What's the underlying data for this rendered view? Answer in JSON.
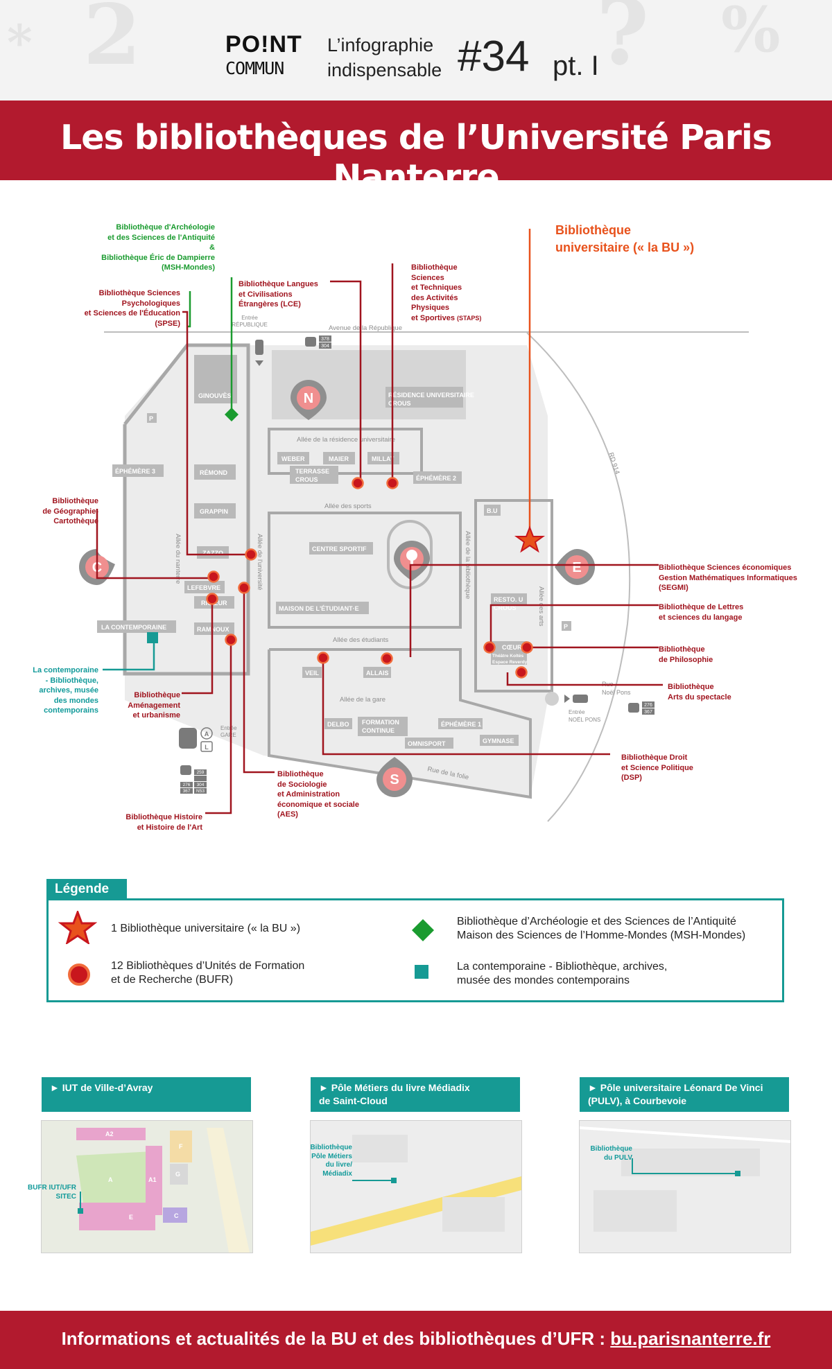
{
  "header": {
    "brand_point": "PO!NT",
    "brand_commun": "COMMUN",
    "tagline_1": "L’infographie",
    "tagline_2": "indispensable",
    "issue": "#34",
    "part": "pt. I",
    "title": "Les bibliothèques de l’Université Paris Nanterre"
  },
  "map": {
    "streets": {
      "avenue": "Avenue de la République",
      "allee_residence": "Allée de la résidence universitaire",
      "allee_sports": "Allée des sports",
      "allee_etudiants": "Allée des étudiants",
      "allee_gare": "Allée de la gare",
      "rue_folie": "Rue de la folie",
      "allee_universite": "Allée de l'université",
      "allee_bibliotheque": "Allée de la bibliothèque",
      "allee_arts": "Allée des arts",
      "allee_nanterre": "Allée du nanterre",
      "rd914": "RD 914"
    },
    "entrances": {
      "republique_1": "Entrée",
      "republique_2": "RÉPUBLIQUE",
      "gare_1": "Entrée",
      "gare_2": "GARE",
      "noel_pons_1": "Entrée",
      "noel_pons_2": "NOËL PONS",
      "rue_noel_1": "Rue",
      "rue_noel_2": "Noël Pons"
    },
    "bus": {
      "republique_1": "378",
      "republique_2": "304",
      "noel_1": "276",
      "noel_2": "367",
      "gare_1": "259",
      "gare_2": "276",
      "gare_3": "304",
      "gare_4": "367",
      "gare_5": "N53",
      "rer": "A",
      "train": "L"
    },
    "zones": {
      "n": "N",
      "c": "C",
      "e": "E",
      "s": "S"
    },
    "buildings": {
      "ginouves": "GINOUVÈS",
      "residence": "RÉSIDENCE UNIVERSITAIRE",
      "crous": "CROUS",
      "weber": "WEBER",
      "maier": "MAIER",
      "millat": "MILLAT",
      "terrasse": "TERRASSE",
      "terrasse_crous": "CROUS",
      "ephemere2": "ÉPHÉMÈRE 2",
      "ephemere3": "ÉPHÉMÈRE 3",
      "remond": "RÉMOND",
      "grappin": "GRAPPIN",
      "zazzo": "ZAZZO",
      "lefebvre": "LEFEBVRE",
      "ricoeur": "RICŒUR",
      "ramnoux": "RAMNOUX",
      "contemporaine": "LA CONTEMPORAINE",
      "centre_sportif": "CENTRE SPORTIF",
      "maison": "MAISON DE L'ÉTUDIANT·E",
      "bu": "B.U",
      "resto": "RESTO. U",
      "crous_e": "CROUS",
      "coeur": "CŒUR",
      "koltes_1": "Théâtre Koltès",
      "koltes_2": "Espace Reverdy",
      "veil": "VEIL",
      "allais": "ALLAIS",
      "delbo": "DELBO",
      "formation_1": "FORMATION",
      "formation_2": "CONTINUE",
      "ephemere1": "ÉPHÉMÈRE 1",
      "omnisport": "OMNISPORT",
      "gymnase": "GYMNASE",
      "parking": "P"
    },
    "libraries": {
      "archeo_1": "Bibliothèque d'Archéologie",
      "archeo_2": "et des Sciences de l'Antiquité",
      "archeo_3": "&",
      "archeo_4": "Bibliothèque Éric de Dampierre",
      "archeo_5": "(MSH-Mondes)",
      "spse_1": "Bibliothèque Sciences",
      "spse_2": "Psychologiques",
      "spse_3": "et Sciences de l'Éducation",
      "spse_4": "(SPSE)",
      "lce_1": "Bibliothèque Langues",
      "lce_2": "et Civilisations",
      "lce_3": "Étrangères (LCE)",
      "staps_1": "Bibliothèque",
      "staps_2": "Sciences",
      "staps_3": "et Techniques",
      "staps_4": "des Activités",
      "staps_5": "Physiques",
      "staps_6": "et Sportives",
      "staps_7": "(STAPS)",
      "bu_1": "Bibliothèque",
      "bu_2": "universitaire (« la BU »)",
      "geo_1": "Bibliothèque",
      "geo_2": "de Géographie-",
      "geo_3": "Cartothèque",
      "segmi_1": "Bibliothèque Sciences économiques",
      "segmi_2": "Gestion Mathématiques Informatiques",
      "segmi_3": "(SEGMI)",
      "lettres_1": "Bibliothèque de Lettres",
      "lettres_2": "et sciences du langage",
      "philo_1": "Bibliothèque",
      "philo_2": "de Philosophie",
      "arts_1": "Bibliothèque",
      "arts_2": "Arts du spectacle",
      "contemp_1": "La contemporaine",
      "contemp_2": "- Bibliothèque,",
      "contemp_3": "archives, musée",
      "contemp_4": "des mondes",
      "contemp_5": "contemporains",
      "amenagement_1": "Bibliothèque",
      "amenagement_2": "Aménagement",
      "amenagement_3": "et urbanisme",
      "dsp_1": "Bibliothèque Droit",
      "dsp_2": "et Science Politique",
      "dsp_3": "(DSP)",
      "aes_1": "Bibliothèque",
      "aes_2": "de Sociologie",
      "aes_3": "et Administration",
      "aes_4": "économique et sociale",
      "aes_5": "(AES)",
      "histoire_1": "Bibliothèque Histoire",
      "histoire_2": "et Histoire de l'Art"
    }
  },
  "legend": {
    "title": "Légende",
    "bu": "1 Bibliothèque universitaire (« la BU »)",
    "bufr_1": "12 Bibliothèques d’Unités de Formation",
    "bufr_2": "et de Recherche (BUFR)",
    "msh_1": "Bibliothèque d’Archéologie et des Sciences de l’Antiquité",
    "msh_2": "Maison des Sciences de l’Homme-Mondes (MSH-Mondes)",
    "contemp_1": "La contemporaine - Bibliothèque, archives,",
    "contemp_2": "musée des mondes contemporains"
  },
  "satellites": [
    {
      "title_1": "► IUT de Ville-d’Avray",
      "title_2": "",
      "label_1": "BUFR IUT/UFR",
      "label_2": "SITEC",
      "buildings": {
        "a2": "A2",
        "a": "A",
        "a1": "A1",
        "e": "E",
        "c": "C",
        "g": "G",
        "f": "F"
      }
    },
    {
      "title_1": "► Pôle Métiers du livre Médiadix",
      "title_2": "de Saint-Cloud",
      "label_1": "Bibliothèque",
      "label_2": "Pôle Métiers",
      "label_3": "du livre/",
      "label_4": "Médiadix"
    },
    {
      "title_1": "► Pôle universitaire Léonard De Vinci",
      "title_2": "(PULV), à Courbevoie",
      "label_1": "Bibliothèque",
      "label_2": "du PULV"
    }
  ],
  "footer": {
    "text": "Informations et actualités de la BU et des bibliothèques d’UFR : ",
    "url": "bu.parisnanterre.fr"
  },
  "colors": {
    "brand_red": "#b21a2e",
    "library_red": "#c8161d",
    "bu_orange": "#e8521c",
    "msh_green": "#1a9b2f",
    "contemporaine_teal": "#169a94",
    "building_gray": "#c4c4c4",
    "campus_gray": "#e9e9e9"
  }
}
